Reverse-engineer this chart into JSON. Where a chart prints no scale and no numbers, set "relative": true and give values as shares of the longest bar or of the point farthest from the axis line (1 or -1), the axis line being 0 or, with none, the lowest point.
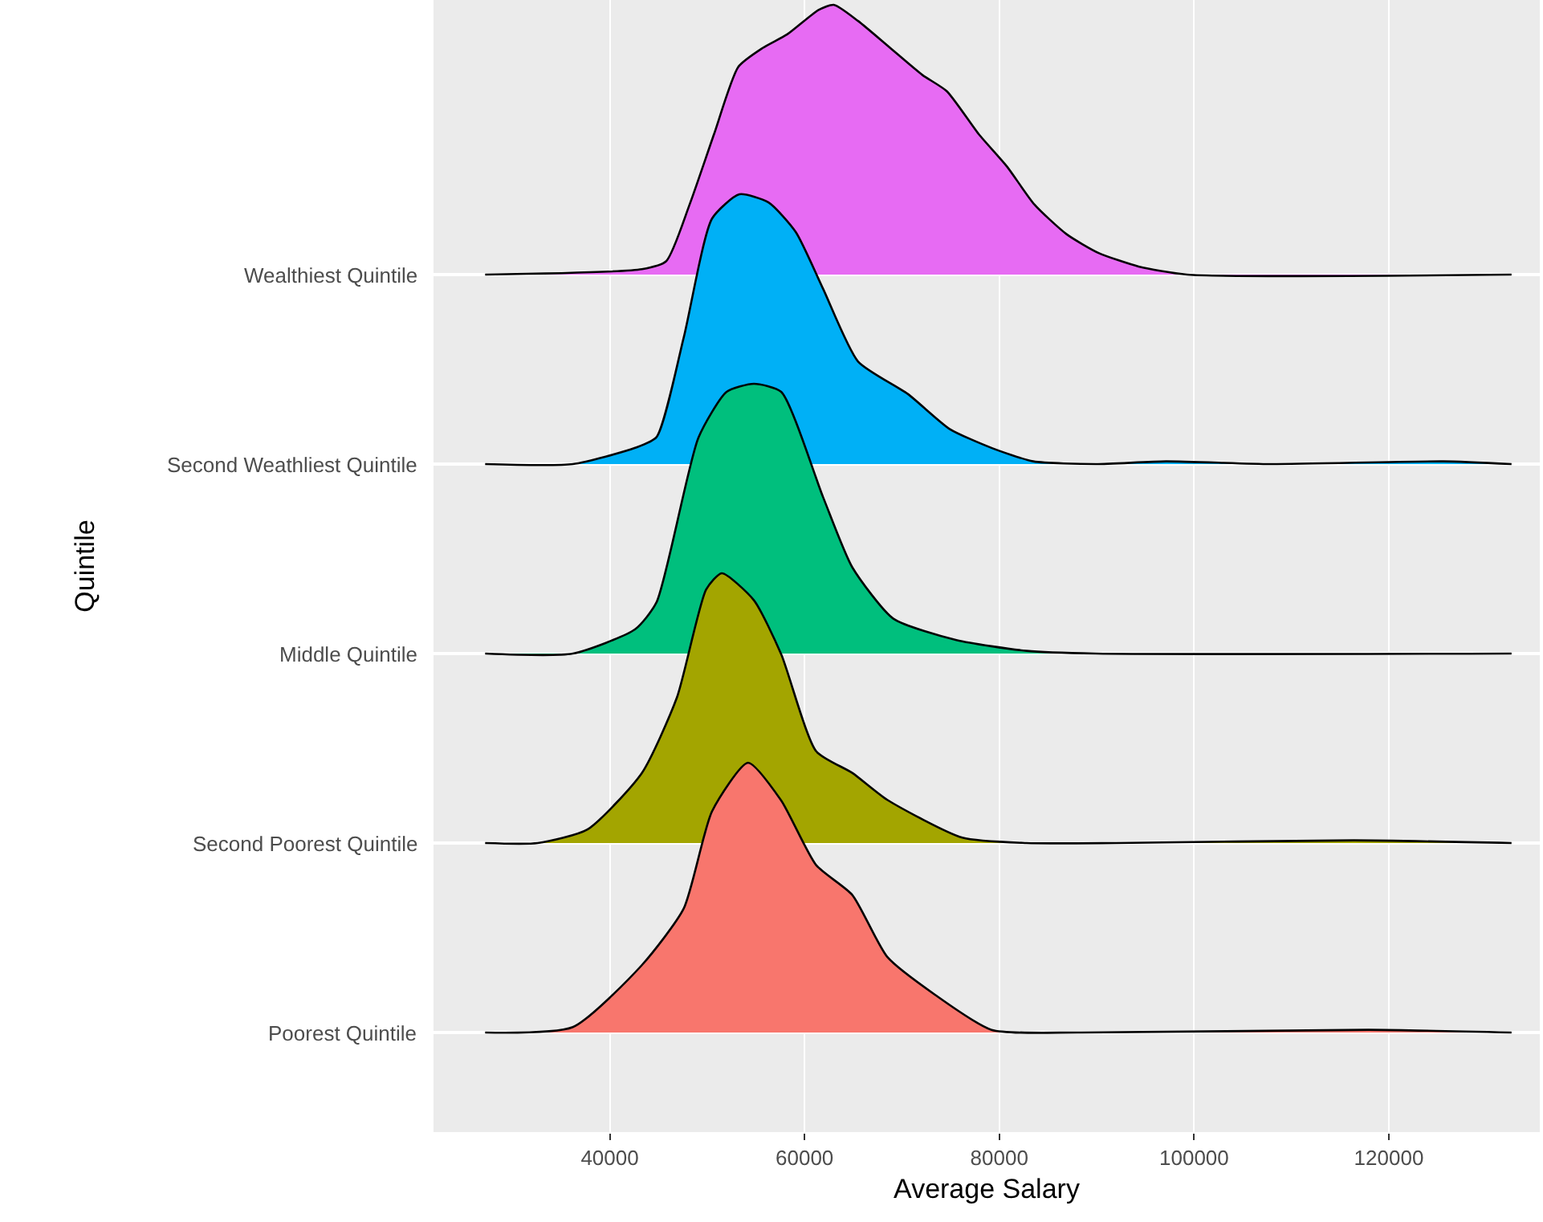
{
  "chart_data": [
    {
      "type": "area",
      "relative": true,
      "grid": "x",
      "tick_labels": false,
      "xlim": [
        21900,
        135500
      ],
      "xticks": [
        40000,
        60000,
        80000,
        100000,
        120000
      ],
      "series": [
        {
          "name": "Wealthiest Quintile",
          "color": "#e76bf3",
          "x": [
            27200,
            43300,
            45800,
            48200,
            50700,
            53200,
            55700,
            58200,
            61400,
            63000,
            65500,
            68800,
            72100,
            74600,
            77900,
            80800,
            83600,
            86900,
            90200,
            94300,
            99300,
            132600
          ],
          "values": [
            0,
            0.02,
            0.05,
            0.26,
            0.52,
            0.77,
            0.84,
            0.89,
            0.98,
            1,
            0.94,
            0.84,
            0.74,
            0.68,
            0.52,
            0.4,
            0.26,
            0.15,
            0.08,
            0.03,
            0,
            0
          ]
        }
      ]
    },
    {
      "type": "area",
      "relative": true,
      "grid": "x",
      "tick_labels": false,
      "xlim": [
        21900,
        135500
      ],
      "xticks": [
        40000,
        60000,
        80000,
        100000,
        120000
      ],
      "series": [
        {
          "name": "Second Weathliest Quintile",
          "color": "#00b0f6",
          "x": [
            27200,
            36200,
            42600,
            44800,
            47600,
            50500,
            53300,
            56300,
            59100,
            61900,
            65500,
            70600,
            74900,
            79200,
            83500,
            89900,
            97100,
            107800,
            125600,
            132600
          ],
          "values": [
            0,
            0,
            0.06,
            0.1,
            0.47,
            0.91,
            1,
            0.97,
            0.86,
            0.65,
            0.38,
            0.26,
            0.13,
            0.06,
            0.01,
            0,
            0.01,
            0,
            0.01,
            0
          ]
        }
      ]
    },
    {
      "type": "area",
      "relative": true,
      "grid": "x",
      "tick_labels": false,
      "ylabel": "Quintile",
      "xlim": [
        21900,
        135500
      ],
      "xticks": [
        40000,
        60000,
        80000,
        100000,
        120000
      ],
      "series": [
        {
          "name": "Middle Quintile",
          "color": "#00bf7d",
          "x": [
            27200,
            36200,
            42600,
            44800,
            49100,
            52000,
            54800,
            57600,
            61900,
            64900,
            69100,
            75600,
            82800,
            89900,
            132600
          ],
          "values": [
            0,
            0,
            0.09,
            0.19,
            0.8,
            0.97,
            1,
            0.97,
            0.58,
            0.32,
            0.13,
            0.05,
            0.01,
            0,
            0
          ]
        }
      ]
    },
    {
      "type": "area",
      "relative": true,
      "grid": "x",
      "tick_labels": false,
      "xlim": [
        21900,
        135500
      ],
      "xticks": [
        40000,
        60000,
        80000,
        100000,
        120000
      ],
      "series": [
        {
          "name": "Second Poorest Quintile",
          "color": "#a3a500",
          "x": [
            27200,
            32600,
            37700,
            43300,
            46900,
            49900,
            51500,
            54800,
            57600,
            61200,
            64900,
            68500,
            76200,
            82800,
            92000,
            116400,
            132600
          ],
          "values": [
            0,
            0,
            0.05,
            0.26,
            0.54,
            0.94,
            1.0,
            0.9,
            0.7,
            0.34,
            0.26,
            0.16,
            0.02,
            0,
            0,
            0.01,
            0
          ]
        }
      ]
    },
    {
      "type": "area",
      "relative": true,
      "grid": "x",
      "tick_labels": "x",
      "xlabel": "Average Salary",
      "xlim": [
        21900,
        135500
      ],
      "xticks": [
        40000,
        60000,
        80000,
        100000,
        120000
      ],
      "series": [
        {
          "name": "Poorest Quintile",
          "color": "#f8766d",
          "x": [
            27200,
            36200,
            43300,
            47600,
            50500,
            54200,
            57600,
            61200,
            64900,
            68500,
            73400,
            79200,
            88400,
            117900,
            132600
          ],
          "values": [
            0,
            0.02,
            0.25,
            0.46,
            0.82,
            1,
            0.86,
            0.62,
            0.51,
            0.28,
            0.14,
            0.01,
            0,
            0.01,
            0
          ]
        }
      ]
    }
  ]
}
